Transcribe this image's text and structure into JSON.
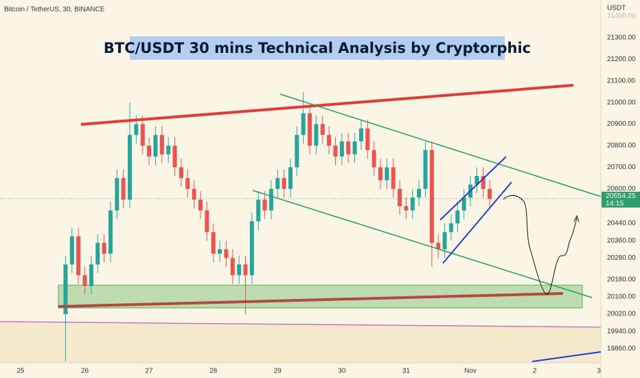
{
  "chart_data": {
    "type": "candlestick",
    "symbol_label": "Bitcoin / TetherUS, 30, BINANCE",
    "title": "BTC/USDT 30 mins Technical Analysis by Cryptorphic",
    "y_axis_label": "USDT",
    "last_price": 20554.25,
    "countdown": "14:15",
    "up_color": "#26a69a",
    "down_color": "#ef5350",
    "grid": false,
    "xlim": [
      24.68,
      34.03
    ],
    "xticks": [
      25,
      26,
      27,
      28,
      29,
      30,
      31,
      {
        "value": 32,
        "label": "Nov"
      },
      {
        "value": 33,
        "label": "2"
      },
      {
        "value": 34,
        "label": "3"
      }
    ],
    "ylim": [
      19794,
      21475
    ],
    "yticks": [
      {
        "value": 19860,
        "label": "19860.00"
      },
      {
        "value": 19940,
        "label": "19940.00"
      },
      {
        "value": 20020,
        "label": "20020.00"
      },
      {
        "value": 20100,
        "label": "20100.00"
      },
      {
        "value": 20180,
        "label": "20180.00"
      },
      {
        "value": 20280,
        "label": "20280.00"
      },
      {
        "value": 20360,
        "label": "20360.00"
      },
      {
        "value": 20440,
        "label": "20440.00"
      },
      {
        "value": 20600,
        "label": "20600.00"
      },
      {
        "value": 20700,
        "label": "20700.00"
      },
      {
        "value": 20800,
        "label": "20800.00"
      },
      {
        "value": 20900,
        "label": "20900.00"
      },
      {
        "value": 21000,
        "label": "21000.00"
      },
      {
        "value": 21100,
        "label": "21100.00"
      },
      {
        "value": 21200,
        "label": "21200.00"
      },
      {
        "value": 21300,
        "label": "21300.00"
      },
      {
        "value": 21400,
        "label": "21400.00"
      }
    ],
    "x": [
      25.7,
      25.8,
      25.9,
      26.0,
      26.1,
      26.2,
      26.3,
      26.4,
      26.5,
      26.6,
      26.7,
      26.8,
      26.9,
      27.0,
      27.1,
      27.2,
      27.3,
      27.4,
      27.5,
      27.6,
      27.7,
      27.8,
      27.9,
      28.0,
      28.1,
      28.2,
      28.3,
      28.4,
      28.5,
      28.6,
      28.7,
      28.8,
      28.9,
      29.0,
      29.1,
      29.2,
      29.3,
      29.4,
      29.5,
      29.6,
      29.7,
      29.8,
      29.9,
      30.0,
      30.1,
      30.2,
      30.3,
      30.4,
      30.5,
      30.6,
      30.7,
      30.8,
      30.9,
      31.0,
      31.1,
      31.2,
      31.3,
      31.4,
      31.5,
      31.6,
      31.7,
      31.8,
      31.9,
      32.0,
      32.1,
      32.2,
      32.3
    ],
    "open": [
      20020,
      20250,
      20380,
      20200,
      20150,
      20250,
      20350,
      20300,
      20500,
      20650,
      20550,
      20850,
      20900,
      20800,
      20750,
      20850,
      20760,
      20800,
      20700,
      20650,
      20600,
      20550,
      20500,
      20400,
      20300,
      20320,
      20280,
      20200,
      20250,
      20200,
      20450,
      20550,
      20500,
      20600,
      20650,
      20600,
      20700,
      20850,
      20950,
      20800,
      20900,
      20850,
      20800,
      20750,
      20820,
      20760,
      20820,
      20880,
      20780,
      20700,
      20640,
      20700,
      20600,
      20520,
      20500,
      20560,
      20600,
      20780,
      20350,
      20320,
      20400,
      20440,
      20500,
      20560,
      20620,
      20660,
      20600
    ],
    "high": [
      20290,
      20420,
      20420,
      20240,
      20290,
      20390,
      20390,
      20540,
      20690,
      20690,
      21000,
      20940,
      20940,
      20840,
      20890,
      20890,
      20840,
      20840,
      20740,
      20690,
      20640,
      20590,
      20540,
      20440,
      20360,
      20360,
      20320,
      20290,
      20290,
      20490,
      20590,
      20590,
      20640,
      20690,
      20690,
      20740,
      20890,
      21050,
      20990,
      20940,
      20940,
      20890,
      20840,
      20860,
      20860,
      20860,
      20920,
      20920,
      20820,
      20740,
      20740,
      20740,
      20640,
      20560,
      20600,
      20640,
      20820,
      20820,
      20390,
      20440,
      20480,
      20540,
      20600,
      20660,
      20700,
      20700,
      20640
    ],
    "low": [
      19800,
      20210,
      20160,
      20110,
      20110,
      20210,
      20260,
      20260,
      20460,
      20510,
      20510,
      20810,
      20760,
      20710,
      20710,
      20720,
      20720,
      20660,
      20610,
      20560,
      20510,
      20460,
      20360,
      20260,
      20260,
      20240,
      20160,
      20160,
      20020,
      20160,
      20410,
      20460,
      20460,
      20560,
      20560,
      20560,
      20660,
      20810,
      20760,
      20760,
      20810,
      20760,
      20710,
      20710,
      20720,
      20720,
      20780,
      20740,
      20660,
      20600,
      20600,
      20560,
      20480,
      20460,
      20460,
      20520,
      20560,
      20240,
      20280,
      20280,
      20360,
      20400,
      20460,
      20520,
      20580,
      20560,
      20514
    ],
    "close": [
      20250,
      20380,
      20200,
      20150,
      20250,
      20350,
      20300,
      20500,
      20650,
      20550,
      20850,
      20900,
      20800,
      20750,
      20850,
      20760,
      20800,
      20700,
      20650,
      20600,
      20550,
      20500,
      20400,
      20300,
      20320,
      20280,
      20200,
      20250,
      20200,
      20450,
      20550,
      20500,
      20600,
      20650,
      20600,
      20700,
      20850,
      20950,
      20800,
      20900,
      20850,
      20800,
      20750,
      20820,
      20760,
      20820,
      20880,
      20780,
      20700,
      20640,
      20700,
      20600,
      20520,
      20500,
      20560,
      20600,
      20780,
      20350,
      20320,
      20400,
      20440,
      20500,
      20560,
      20620,
      20660,
      20600,
      20554
    ]
  }
}
